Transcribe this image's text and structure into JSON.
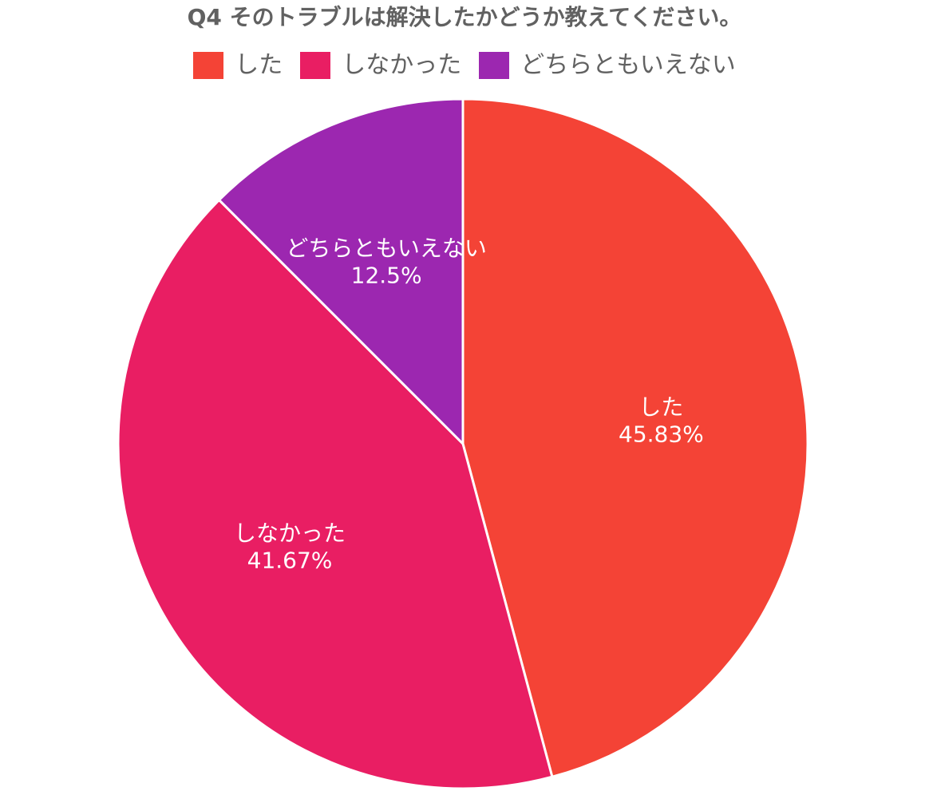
{
  "chart_data": {
    "type": "pie",
    "title": "Q4 そのトラブルは解決したかどうか教えてください。",
    "legend_position": "top",
    "slices": [
      {
        "label": "した",
        "value": 45.83,
        "value_label": "45.83%",
        "color": "#F44336"
      },
      {
        "label": "しなかった",
        "value": 41.67,
        "value_label": "41.67%",
        "color": "#E91E63"
      },
      {
        "label": "どちらともいえない",
        "value": 12.5,
        "value_label": "12.5%",
        "color": "#9C27B0"
      }
    ]
  }
}
